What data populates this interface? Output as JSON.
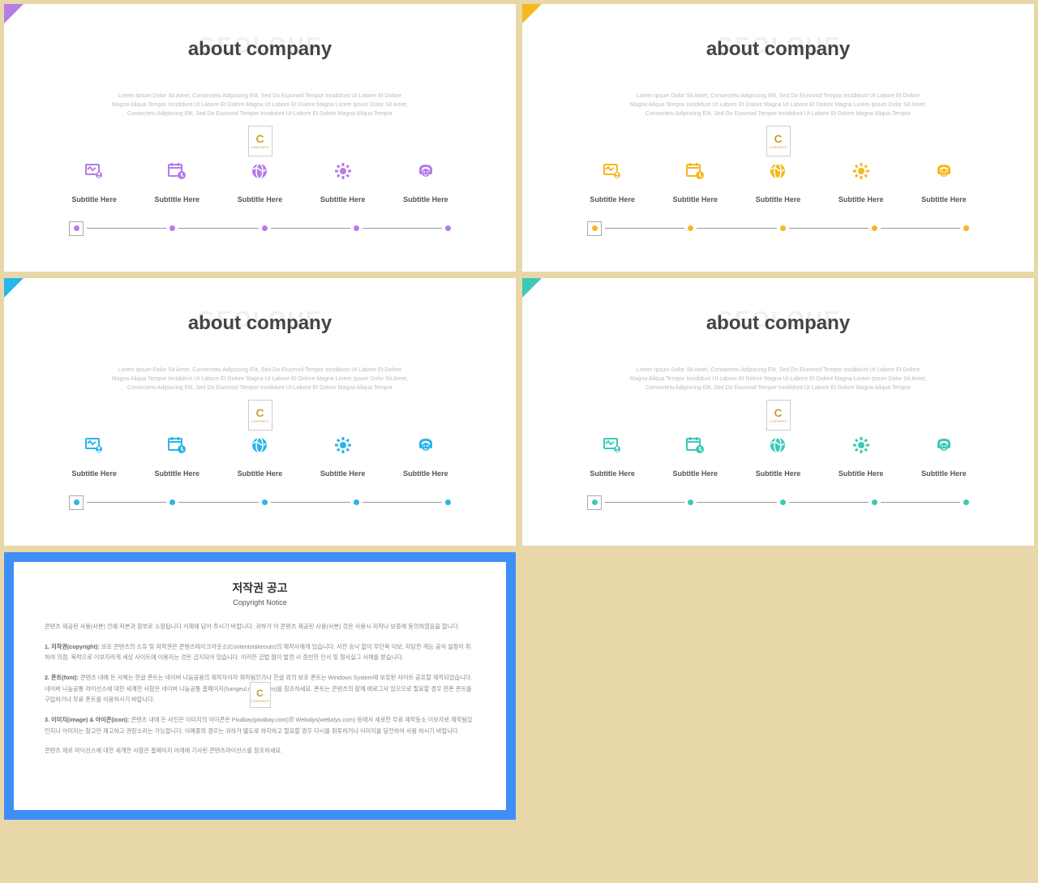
{
  "watermark": "GEOLOUE",
  "slide_title": "about company",
  "desc_line1": "Lorem Ipsum Dolor Sit Amet, Consectetu Adipiscing Elit, Sed Do Eiusmod Tempor Incididunt Ut Labore Et Dolore",
  "desc_line2": "Magna Aliqua Tempor Incididunt Ut Labore Et Dolore Magna Ut Labore Et Dolore Magna Lorem Ipsum Dolor Sit Amet,",
  "desc_line3": "Consectetu Adipiscing Elit, Sed Do Eiusmod Tempor Incididunt Ut Labore Et Dolore Magna Aliqua Tempor",
  "badge_letter": "C",
  "badge_sub": "CONTENTS",
  "subtitle": "Subtitle Here",
  "slides": [
    {
      "accent": "#b57ce8",
      "corner": "#b57ce8"
    },
    {
      "accent": "#f5b820",
      "corner": "#f5b820"
    },
    {
      "accent": "#2bb5e8",
      "corner": "#2bb5e8"
    },
    {
      "accent": "#3cc9b8",
      "corner": "#3cc9b8"
    }
  ],
  "notice": {
    "border_color": "#3d8ff5",
    "bottom_color": "#a8d0f0",
    "title": "저작권 공고",
    "subtitle": "Copyright Notice",
    "p1": "콘텐츠 제공된 사용(사본) 전에 저본과 함부로 소장됩니다 서제에 담아 주시기 바랍니다. 귀하가 이 콘텐츠 제공된 사용(사본) 것은 사용시 저작나 보증에 동의하였음을 합니다.",
    "p2_label": "1. 저작권(copyright):",
    "p2": "보조 콘텐츠의 소유 및 저작권은 콘텐츠테이크아웃소(Contentstakeouts)의 제작사에게 있습니다. 사전 승낙 없이 무단복 이보, 저당한 계능 공식 설정이 취하여 의점. 목적으로 이보자라게 세상 사이트에 이용자는 것은 금지되어 있습니다. 이러한 금법 혐이 발견 시 증빈한 민서 및 형사실그 사채를 받습니다.",
    "p3_label": "2. 폰트(font):",
    "p3": "콘텐츠 내에 든 서체는 한글 폰트는 네이버 나눔공용의 제작자이자 제작됨인가나 한글 외의 보조 폰트는 Windows System에 보유된 사이트 공유할 제작되었습니다. 네이버 나눔공통 라이선스에 대한 세계한 사함은 네이버 나눔공통 홈페이지(hangeul.naver.com)를 참조하세요. 폰트는 콘텐츠의 함께 애로그사 있으므로 필요할 경우 현폰 폰트를 구입하거나 무료 폰트를 이용하시기 바랍니다.",
    "p4_label": "3. 이미지(image) & 아이콘(icon):",
    "p4": "콘텐츠 내에 든 사진은 이미지의 아이콘은 Pixabay(pixabay.com)와 Webalys(webalys.com) 등에서 세로한 무료 제작등소 이보자로 제작됨있인지나 아미지는 참고만 제고하고 권장소리는 가능합니다. 이메중외 경우는 귀하가 별도로 하각하고 필요할 경우 다시를 취투하거나 이미지를 당전하여 사용 하시기 바랍니다.",
    "p5": "콘텐츠 제로 라이선스에 대한 세계한 사함은 홈페이지 아래에 기사된 콘텐츠라이선스를 참조하세요."
  }
}
